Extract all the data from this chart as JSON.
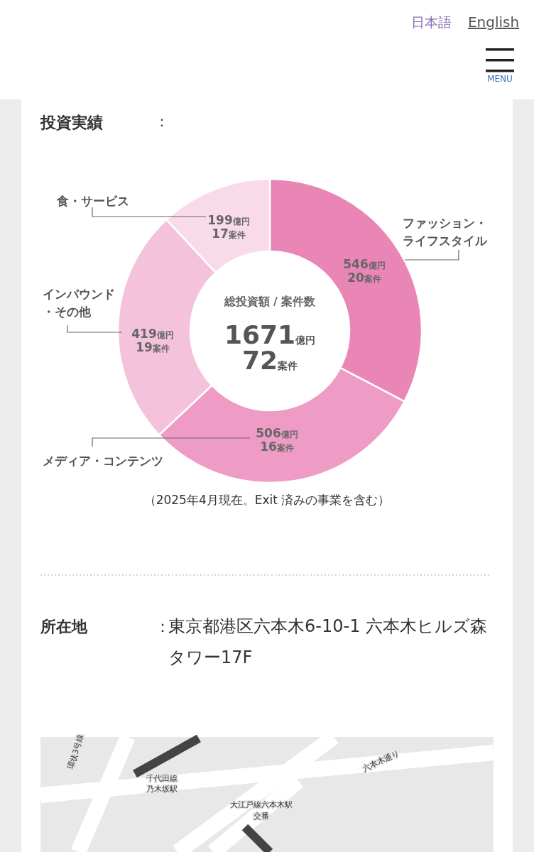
{
  "chart_data": {
    "type": "donut",
    "title": "投資実績",
    "categories": [
      "ファッション・ライフスタイル",
      "メディア・コンテンツ",
      "インバウンド・その他",
      "食・サービス"
    ],
    "values": [
      546,
      506,
      419,
      199
    ],
    "colors": [
      "#e986b6",
      "#ee9cc5",
      "#f4c2db",
      "#f8dae9"
    ],
    "value_labels": [
      "546億円\n20案件",
      "506億円\n16案件",
      "419億円\n19案件",
      "199億円\n17案件"
    ],
    "annotations": [
      "総投資額 / 案件数",
      "1671億円",
      "72案件",
      "（2025年4月現在。Exit 済みの事業を含む）",
      "日本語",
      "English",
      "MENU",
      "：",
      "所在地",
      "：",
      "東京都港区六本木6-10-1 六本木ヒルズ森タワー17F",
      "環状3号線",
      "千代田線乃木坂駅",
      "大江戸線六本木駅",
      "交番",
      "六本木通り"
    ]
  }
}
